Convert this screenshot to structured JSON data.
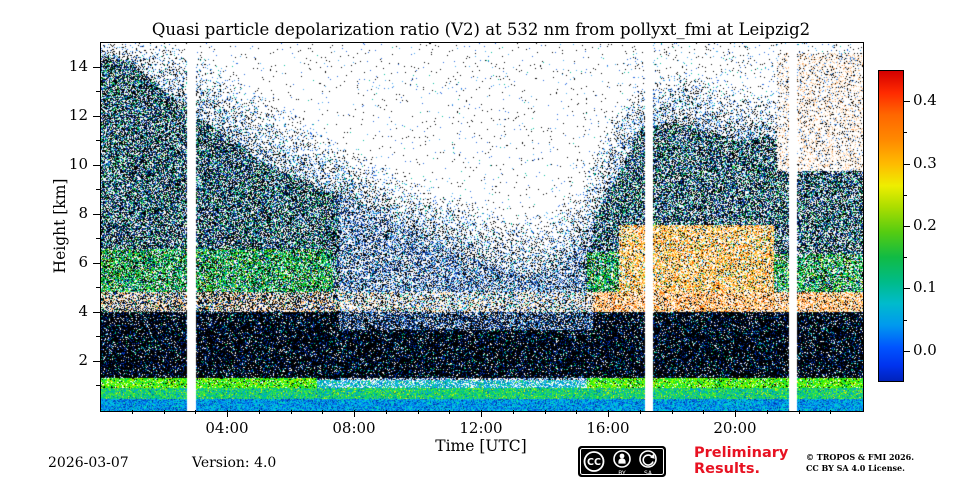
{
  "title": "Quasi particle depolarization ratio (V2) at 532 nm from pollyxt_fmi at Leipzig2",
  "axes": {
    "x": {
      "label": "Time [UTC]",
      "ticks": [
        "04:00",
        "08:00",
        "12:00",
        "16:00",
        "20:00"
      ],
      "tick_hours": [
        4,
        8,
        12,
        16,
        20
      ],
      "range_hours": [
        0,
        24
      ],
      "minor_step_hours": 1
    },
    "y": {
      "label": "Height [km]",
      "ticks": [
        "2",
        "4",
        "6",
        "8",
        "10",
        "12",
        "14"
      ],
      "tick_values": [
        2,
        4,
        6,
        8,
        10,
        12,
        14
      ],
      "range_km": [
        0,
        15
      ],
      "minor_step_km": 1
    }
  },
  "colorbar": {
    "ticks": [
      "0.0",
      "0.1",
      "0.2",
      "0.3",
      "0.4"
    ]
  },
  "footer": {
    "date": "2026-03-07",
    "version": "Version: 4.0",
    "preliminary_line1": "Preliminary",
    "preliminary_line2": "Results.",
    "copyright_line1": "© TROPOS & FMI 2026.",
    "copyright_line2": "CC BY SA 4.0 License.",
    "cc_badge": "cc-by-sa-badge"
  },
  "chart_data": {
    "type": "heatmap",
    "title": "Quasi particle depolarization ratio (V2) at 532 nm from pollyxt_fmi at Leipzig2",
    "xlabel": "Time [UTC]",
    "ylabel": "Height [km]",
    "x_range_hours": [
      0,
      24
    ],
    "x_ticks": [
      "04:00",
      "08:00",
      "12:00",
      "16:00",
      "20:00"
    ],
    "y_range_km": [
      0,
      15
    ],
    "y_ticks": [
      2,
      4,
      6,
      8,
      10,
      12,
      14
    ],
    "value_label": "quasi particle depolarization ratio",
    "value_range": [
      0.0,
      0.4
    ],
    "colorbar_ticks": [
      0.0,
      0.1,
      0.2,
      0.3,
      0.4
    ],
    "colormap": "jet",
    "data_gaps_utc": [
      "02:50",
      "17:17",
      "21:50"
    ],
    "features": [
      "boundary-layer aerosol with low depolarization (green/cyan) below ~1 km all day",
      "dense low cloud/aerosol band 1.5-4 km with near-zero depolarization (black/blue)",
      "thin depolarizing layer near 4.5 km across the whole day",
      "elevated depolarizing layer (~0.2-0.3, orange) 16:30-21:00 at 5-7.5 km",
      "deep speckled cloud regions 00:00-07:00 and 17:00-24:00 reaching 11-15 km",
      "clearer upper troposphere around midday",
      "full-height data gaps near 02:50, 17:17 and 21:50 UTC"
    ],
    "colorbar_gradient": [
      [
        0,
        "#d40000"
      ],
      [
        0.07,
        "#ff2a00"
      ],
      [
        0.14,
        "#ff6600"
      ],
      [
        0.22,
        "#ff8800"
      ],
      [
        0.3,
        "#ffbb00"
      ],
      [
        0.37,
        "#eeee00"
      ],
      [
        0.44,
        "#aadd00"
      ],
      [
        0.52,
        "#55cc11"
      ],
      [
        0.6,
        "#11bb44"
      ],
      [
        0.68,
        "#00bb88"
      ],
      [
        0.75,
        "#00bbcc"
      ],
      [
        0.82,
        "#0099ee"
      ],
      [
        0.89,
        "#0055ff"
      ],
      [
        0.95,
        "#0033ee"
      ],
      [
        1,
        "#0022bb"
      ]
    ],
    "render": {
      "gaps": [
        {
          "t": 2.85,
          "halfwidth": 0.14
        },
        {
          "t": 17.25,
          "halfwidth": 0.13
        },
        {
          "t": 21.8,
          "halfwidth": 0.12
        }
      ],
      "background": {
        "envelope_dense": [
          14.5,
          14.2,
          13.0,
          12.0,
          11.2,
          10.2,
          9.6,
          9.0,
          8.6,
          7.8,
          7.2,
          6.6,
          6.1,
          5.7,
          5.6,
          6.5,
          9.0,
          11.5,
          11.8,
          11.5,
          11.0,
          11.2,
          10.6,
          10.8,
          11.0
        ],
        "envelope_sparse": [
          15,
          15,
          15,
          14.6,
          13.8,
          13.0,
          12.2,
          11.2,
          10.6,
          10.0,
          9.4,
          8.8,
          8.4,
          8.0,
          8.0,
          9.0,
          12.0,
          13.5,
          14.0,
          13.8,
          13.4,
          13.0,
          12.6,
          13.0,
          13.2
        ],
        "dense_density_am": 0.78,
        "dense_density_mid": 0.6,
        "dense_density_pm": 0.75,
        "midday_range": [
          7.5,
          15.5
        ],
        "fade_density_top": 0.45,
        "fade_density_bottom": 0.06,
        "sparse_density_edge": 0.05,
        "sparse_density_mid": 0.022,
        "edge_hours": [
          3.5,
          16.5
        ]
      },
      "bands": [
        {
          "name": "bl-bottom",
          "t": [
            0,
            24
          ],
          "h": [
            0,
            0.5
          ],
          "density": 1,
          "pal": "blBottom"
        },
        {
          "name": "bl-mid",
          "t": [
            0,
            24
          ],
          "h": [
            0.5,
            0.95
          ],
          "density": 1,
          "pal": "blMid"
        },
        {
          "name": "green-line-am",
          "t": [
            0,
            6.8
          ],
          "h": [
            0.95,
            1.35
          ],
          "density": 0.92,
          "pal": "greenLine"
        },
        {
          "name": "green-line-pm",
          "t": [
            15.3,
            24
          ],
          "h": [
            0.95,
            1.35
          ],
          "density": 0.92,
          "pal": "greenLine"
        },
        {
          "name": "bl-top-midday",
          "t": [
            6.8,
            15.3
          ],
          "h": [
            0.95,
            1.25
          ],
          "density": 0.7,
          "pal": "blTopMid"
        },
        {
          "name": "black-low",
          "t": [
            0,
            24
          ],
          "h": [
            1.35,
            3.3
          ],
          "density": 0.96,
          "pal": "blackLow"
        },
        {
          "name": "black-low-2am",
          "t": [
            0,
            7.5
          ],
          "h": [
            3.3,
            4.05
          ],
          "density": 0.95,
          "pal": "blackLow"
        },
        {
          "name": "black-low-2pm",
          "t": [
            15.5,
            24
          ],
          "h": [
            3.3,
            4.05
          ],
          "density": 0.95,
          "pal": "blackLow"
        },
        {
          "name": "black-low-2mid",
          "t": [
            7.5,
            15.5
          ],
          "h": [
            3.3,
            4.05
          ],
          "density": 0.8,
          "pal": "midBlue"
        },
        {
          "name": "band45-pm",
          "t": [
            15.5,
            24
          ],
          "h": [
            4.05,
            4.85
          ],
          "density": 0.85,
          "pal": "band45pm"
        },
        {
          "name": "band45-am",
          "t": [
            0,
            7.5
          ],
          "h": [
            4.05,
            4.85
          ],
          "density": 0.85,
          "pal": "band45am"
        },
        {
          "name": "band45-mid",
          "t": [
            7.5,
            15.5
          ],
          "h": [
            4.05,
            4.85
          ],
          "density": 0.75,
          "pal": "band45mid"
        },
        {
          "name": "orange-patch",
          "t": [
            16.3,
            21.2
          ],
          "h": [
            4.85,
            7.6
          ],
          "density": 0.82,
          "pal": "orangePatch"
        },
        {
          "name": "green-mid-am",
          "t": [
            0,
            7.3
          ],
          "h": [
            4.85,
            6.6
          ],
          "density": 0.85,
          "pal": "greenMid"
        },
        {
          "name": "green-mid-pm",
          "t": [
            15.3,
            16.3
          ],
          "h": [
            4.85,
            6.5
          ],
          "density": 0.85,
          "pal": "greenMid"
        },
        {
          "name": "green-mid-late",
          "t": [
            21.2,
            24
          ],
          "h": [
            4.85,
            6.4
          ],
          "density": 0.8,
          "pal": "greenMid"
        },
        {
          "name": "tan-top-right",
          "t": [
            21.3,
            24
          ],
          "h": [
            9.8,
            14.6
          ],
          "density": 0.45,
          "pal": "tanTop"
        }
      ],
      "palettes": {
        "blBottom": [
          [
            "#0077ee",
            3
          ],
          [
            "#00aaee",
            3
          ],
          [
            "#00ccdd",
            2
          ],
          [
            "#0055cc",
            2
          ],
          [
            "#00ddaa",
            1
          ],
          [
            "#003399",
            0.5
          ]
        ],
        "blMid": [
          [
            "#00cc77",
            2.5
          ],
          [
            "#33dd44",
            2
          ],
          [
            "#00bbaa",
            1.5
          ],
          [
            "#55ee33",
            1.5
          ],
          [
            "#0099ee",
            1
          ],
          [
            "#ccee00",
            0.3
          ],
          [
            "#007788",
            0.5
          ],
          [
            "#ffee00",
            0.2
          ]
        ],
        "greenLine": [
          [
            "#33ee00",
            3
          ],
          [
            "#88ff00",
            2
          ],
          [
            "#00dd55",
            2
          ],
          [
            "#bbff00",
            1
          ],
          [
            "#000000",
            0.8
          ],
          [
            "#ffcc00",
            0.3
          ]
        ],
        "blTopMid": [
          [
            "#00aadd",
            2
          ],
          [
            "#00cc99",
            1.5
          ],
          [
            "#33bbee",
            1.5
          ],
          [
            "#0066cc",
            1
          ],
          [
            "#44dd44",
            0.7
          ]
        ],
        "blackLow": [
          [
            "#000000",
            8
          ],
          [
            "#001144",
            1.5
          ],
          [
            "#0033bb",
            1
          ],
          [
            "#00bbcc",
            0.25
          ],
          [
            "#00cc66",
            0.2
          ],
          [
            "#ffffff",
            0.2
          ],
          [
            "#88ddee",
            0.2
          ]
        ],
        "midBlue": [
          [
            "#000000",
            5
          ],
          [
            "#0a2a88",
            1.5
          ],
          [
            "#2266dd",
            1.5
          ],
          [
            "#44aaee",
            0.8
          ],
          [
            "#ffffff",
            0.5
          ],
          [
            "#00bbaa",
            0.3
          ]
        ],
        "band45pm": [
          [
            "#ffffff",
            2.5
          ],
          [
            "#ffcc88",
            2
          ],
          [
            "#ff9933",
            2
          ],
          [
            "#ffee66",
            1
          ],
          [
            "#000000",
            1.5
          ],
          [
            "#ff6600",
            0.8
          ],
          [
            "#cc4400",
            0.3
          ]
        ],
        "band45am": [
          [
            "#ffffff",
            2
          ],
          [
            "#ffddaa",
            1.2
          ],
          [
            "#ff9933",
            0.8
          ],
          [
            "#000000",
            3
          ],
          [
            "#0044cc",
            0.8
          ],
          [
            "#00aa66",
            0.5
          ]
        ],
        "band45mid": [
          [
            "#ffffff",
            2.5
          ],
          [
            "#ffddaa",
            0.8
          ],
          [
            "#000000",
            2
          ],
          [
            "#4488ff",
            1
          ],
          [
            "#00ccaa",
            0.6
          ],
          [
            "#ffaa44",
            0.4
          ]
        ],
        "orangePatch": [
          [
            "#ffffff",
            2
          ],
          [
            "#ff9922",
            2.2
          ],
          [
            "#ffcc33",
            1.5
          ],
          [
            "#ffee88",
            1
          ],
          [
            "#000000",
            1.2
          ],
          [
            "#ff5500",
            0.5
          ],
          [
            "#44bb44",
            0.4
          ],
          [
            "#00aaff",
            0.3
          ]
        ],
        "greenMid": [
          [
            "#000000",
            3
          ],
          [
            "#00cc44",
            2
          ],
          [
            "#33bb22",
            1.5
          ],
          [
            "#00ddaa",
            1
          ],
          [
            "#1155cc",
            1
          ],
          [
            "#ffffff",
            0.8
          ],
          [
            "#aaff00",
            0.4
          ],
          [
            "#ffaa00",
            0.2
          ]
        ],
        "tanTop": [
          [
            "#ffffff",
            3
          ],
          [
            "#ffddbb",
            2
          ],
          [
            "#eebb88",
            1
          ],
          [
            "#000000",
            1.5
          ],
          [
            "#4488dd",
            0.8
          ],
          [
            "#ffaa66",
            0.5
          ]
        ],
        "denseSide": [
          [
            "#000000",
            5
          ],
          [
            "#0a2a88",
            1.6
          ],
          [
            "#1155cc",
            1.2
          ],
          [
            "#00bb99",
            0.8
          ],
          [
            "#22cc44",
            0.8
          ],
          [
            "#66ddee",
            0.5
          ],
          [
            "#ffffff",
            0.6
          ],
          [
            "#ccee88",
            0.2
          ]
        ],
        "denseMid": [
          [
            "#000000",
            3
          ],
          [
            "#0a2a88",
            1.4
          ],
          [
            "#2266dd",
            1.6
          ],
          [
            "#44aaee",
            1
          ],
          [
            "#00bbaa",
            0.5
          ],
          [
            "#ffffff",
            0.7
          ],
          [
            "#99ccff",
            0.5
          ]
        ],
        "fade": [
          [
            "#000000",
            2.5
          ],
          [
            "#2266dd",
            1.2
          ],
          [
            "#44aaee",
            0.8
          ],
          [
            "#00bb99",
            0.4
          ],
          [
            "#ffffff",
            0.3
          ]
        ]
      }
    }
  }
}
